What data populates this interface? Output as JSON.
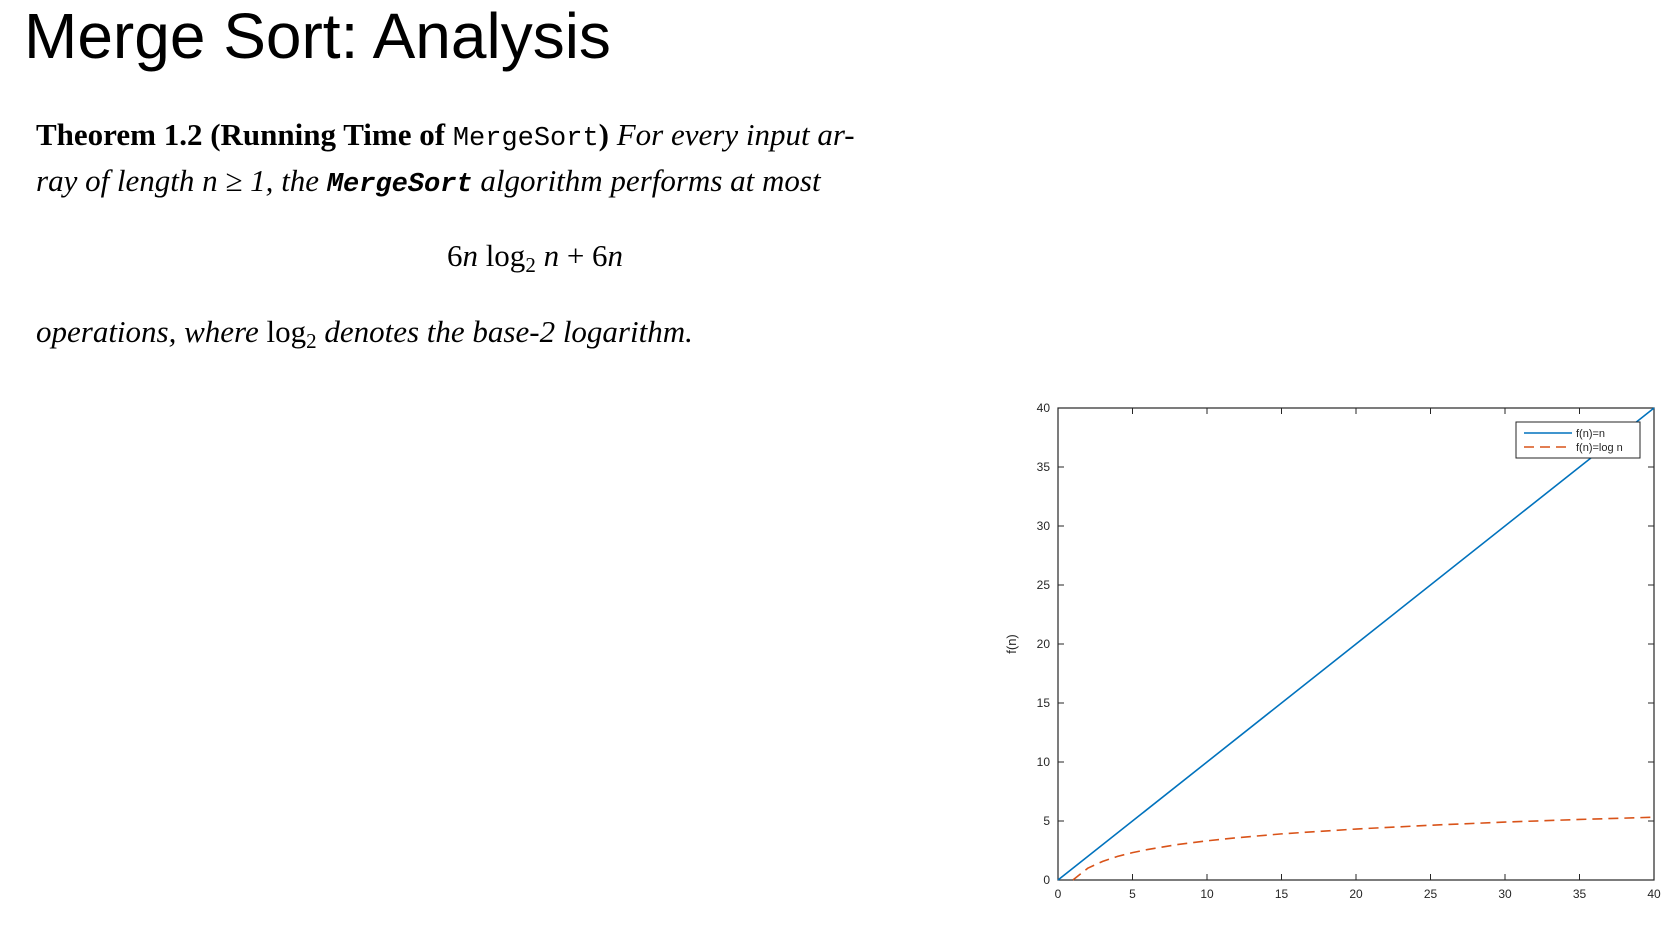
{
  "slide": {
    "title": "Merge Sort: Analysis"
  },
  "theorem": {
    "label": "Theorem 1.2",
    "paren_open": "(Running Time of ",
    "name_code": "MergeSort",
    "paren_close": ")",
    "line1_rest": "For every input ar-",
    "line2_a": "ray of length",
    "line2_b": "n ≥ 1,",
    "line2_c": "the",
    "line2_code": "MergeSort",
    "line2_d": "algorithm performs at most"
  },
  "formula": {
    "a": "6",
    "b": "n",
    "c": " log",
    "sub": "2",
    "d": " n",
    "e": " + 6",
    "f": "n"
  },
  "conclusion": {
    "a": "operations, where ",
    "log": "log",
    "sub": "2",
    "b": " denotes the base-2 logarithm."
  },
  "colors": {
    "series_linear": "#0072BD",
    "series_log": "#D95319"
  },
  "chart_data": {
    "type": "line",
    "ylabel": "f(n)",
    "xlabel": "",
    "xlim": [
      0,
      40
    ],
    "ylim": [
      0,
      40
    ],
    "xticks": [
      "0",
      "5",
      "10",
      "15",
      "20",
      "25",
      "30",
      "35",
      "40"
    ],
    "yticks": [
      "0",
      "5",
      "10",
      "15",
      "20",
      "25",
      "30",
      "35",
      "40"
    ],
    "grid": false,
    "legend_position": "top-right",
    "series": [
      {
        "name": "f(n)=n",
        "style": "solid",
        "x": [
          0,
          40
        ],
        "y": [
          0,
          40
        ]
      },
      {
        "name": "f(n)=log n",
        "style": "dashed",
        "x": [
          1,
          2,
          3,
          4,
          5,
          6,
          8,
          10,
          12,
          15,
          20,
          25,
          30,
          35,
          40
        ],
        "y": [
          0,
          1,
          1.58,
          2,
          2.32,
          2.58,
          3,
          3.32,
          3.58,
          3.91,
          4.32,
          4.64,
          4.91,
          5.13,
          5.32
        ]
      }
    ]
  }
}
